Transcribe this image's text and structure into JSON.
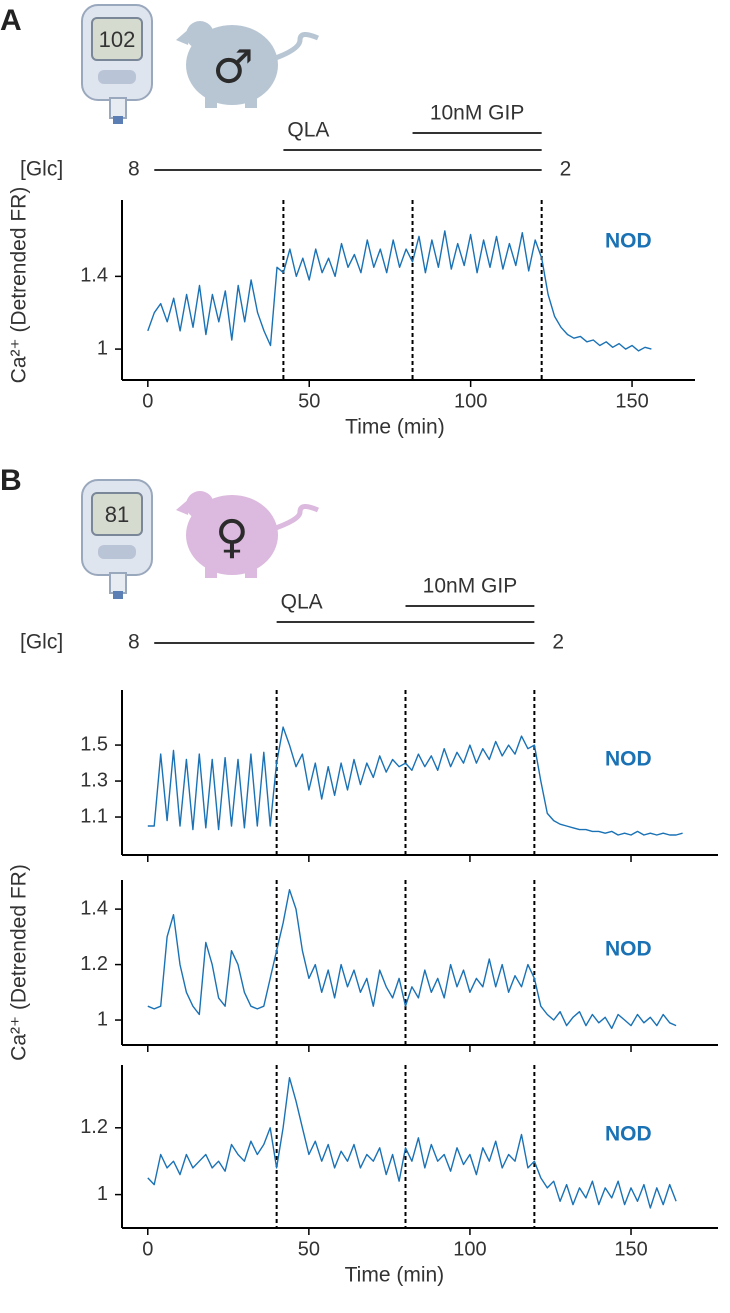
{
  "panels": [
    {
      "label": "A",
      "meter_reading": "102",
      "sex_symbol": "♂",
      "treatments": [
        {
          "label": "10nM GIP",
          "start": 82,
          "end": 122
        },
        {
          "label": "QLA",
          "start": 42,
          "end": 122
        }
      ],
      "glucose": {
        "label": "[Glc]",
        "from": 8,
        "to": 2,
        "start": 2,
        "end": 122
      }
    },
    {
      "label": "B",
      "meter_reading": "81",
      "sex_symbol": "♀",
      "treatments": [
        {
          "label": "10nM GIP",
          "start": 80,
          "end": 120
        },
        {
          "label": "QLA",
          "start": 40,
          "end": 120
        }
      ],
      "glucose": {
        "label": "[Glc]",
        "from": 8,
        "to": 2,
        "start": 2,
        "end": 120
      }
    }
  ],
  "chart_data": [
    {
      "type": "line",
      "color": "#1a72b5",
      "annotation": "NOD",
      "ylabel": "Ca²⁺ (Detrended FR)",
      "xlabel": "Time (min)",
      "xlim": [
        -8,
        169.5
      ],
      "xticks": [
        0,
        50,
        100,
        150
      ],
      "xtick_labels": true,
      "ylim": [
        0.83,
        1.82
      ],
      "yticks": [
        1.0,
        1.4
      ],
      "vlines": [
        42,
        82,
        122
      ],
      "x": [
        0,
        2,
        4,
        6,
        8,
        10,
        12,
        14,
        16,
        18,
        20,
        22,
        24,
        26,
        28,
        30,
        32,
        34,
        36,
        38,
        40,
        42,
        44,
        46,
        48,
        50,
        52,
        54,
        56,
        58,
        60,
        62,
        64,
        66,
        68,
        70,
        72,
        74,
        76,
        78,
        80,
        82,
        84,
        86,
        88,
        90,
        92,
        94,
        96,
        98,
        100,
        102,
        104,
        106,
        108,
        110,
        112,
        114,
        116,
        118,
        120,
        122,
        124,
        126,
        128,
        130,
        132,
        134,
        136,
        138,
        140,
        142,
        144,
        146,
        148,
        150,
        152,
        154,
        156
      ],
      "values": [
        1.1,
        1.2,
        1.25,
        1.15,
        1.28,
        1.1,
        1.3,
        1.12,
        1.35,
        1.08,
        1.3,
        1.15,
        1.32,
        1.05,
        1.35,
        1.15,
        1.38,
        1.2,
        1.1,
        1.02,
        1.45,
        1.42,
        1.55,
        1.4,
        1.5,
        1.38,
        1.55,
        1.42,
        1.5,
        1.4,
        1.58,
        1.45,
        1.52,
        1.42,
        1.6,
        1.45,
        1.55,
        1.42,
        1.6,
        1.45,
        1.55,
        1.48,
        1.62,
        1.42,
        1.6,
        1.45,
        1.65,
        1.44,
        1.58,
        1.46,
        1.63,
        1.42,
        1.6,
        1.45,
        1.62,
        1.44,
        1.58,
        1.46,
        1.64,
        1.43,
        1.6,
        1.5,
        1.3,
        1.18,
        1.12,
        1.08,
        1.06,
        1.07,
        1.04,
        1.05,
        1.02,
        1.04,
        1.01,
        1.03,
        1.0,
        1.02,
        0.99,
        1.01,
        1.0
      ]
    },
    {
      "type": "line",
      "color": "#1a72b5",
      "annotation": "NOD",
      "xlim": [
        -8,
        177
      ],
      "xticks": [
        0,
        50,
        100,
        150
      ],
      "xtick_labels": false,
      "ylim": [
        0.889,
        1.806
      ],
      "yticks": [
        1.1,
        1.3,
        1.5
      ],
      "vlines": [
        40,
        80,
        120
      ],
      "x": [
        0,
        2,
        4,
        6,
        8,
        10,
        12,
        14,
        16,
        18,
        20,
        22,
        24,
        26,
        28,
        30,
        32,
        34,
        36,
        38,
        40,
        42,
        44,
        46,
        48,
        50,
        52,
        54,
        56,
        58,
        60,
        62,
        64,
        66,
        68,
        70,
        72,
        74,
        76,
        78,
        80,
        82,
        84,
        86,
        88,
        90,
        92,
        94,
        96,
        98,
        100,
        102,
        104,
        106,
        108,
        110,
        112,
        114,
        116,
        118,
        120,
        122,
        124,
        126,
        128,
        130,
        132,
        134,
        136,
        138,
        140,
        142,
        144,
        146,
        148,
        150,
        152,
        154,
        156,
        158,
        160,
        162,
        164,
        166
      ],
      "values": [
        1.05,
        1.05,
        1.45,
        1.08,
        1.47,
        1.05,
        1.42,
        1.03,
        1.45,
        1.04,
        1.42,
        1.03,
        1.43,
        1.05,
        1.42,
        1.04,
        1.45,
        1.05,
        1.46,
        1.05,
        1.4,
        1.6,
        1.5,
        1.38,
        1.45,
        1.25,
        1.4,
        1.2,
        1.38,
        1.22,
        1.4,
        1.25,
        1.42,
        1.28,
        1.4,
        1.32,
        1.44,
        1.35,
        1.42,
        1.38,
        1.4,
        1.36,
        1.45,
        1.38,
        1.44,
        1.36,
        1.48,
        1.38,
        1.46,
        1.4,
        1.5,
        1.4,
        1.48,
        1.42,
        1.52,
        1.44,
        1.5,
        1.45,
        1.55,
        1.48,
        1.5,
        1.3,
        1.12,
        1.08,
        1.06,
        1.05,
        1.04,
        1.03,
        1.03,
        1.02,
        1.02,
        1.01,
        1.02,
        1.0,
        1.01,
        1.0,
        1.02,
        1.0,
        1.01,
        1.0,
        1.01,
        1.0,
        1.0,
        1.01
      ]
    },
    {
      "type": "line",
      "color": "#1a72b5",
      "annotation": "NOD",
      "ylabel": "Ca²⁺ (Detrended FR)",
      "xlim": [
        -8,
        177
      ],
      "xticks": [
        0,
        50,
        100,
        150
      ],
      "xtick_labels": false,
      "ylim": [
        0.91,
        1.505
      ],
      "yticks": [
        1.0,
        1.2,
        1.4
      ],
      "vlines": [
        40,
        80,
        120
      ],
      "x": [
        0,
        2,
        4,
        6,
        8,
        10,
        12,
        14,
        16,
        18,
        20,
        22,
        24,
        26,
        28,
        30,
        32,
        34,
        36,
        38,
        40,
        42,
        44,
        46,
        48,
        50,
        52,
        54,
        56,
        58,
        60,
        62,
        64,
        66,
        68,
        70,
        72,
        74,
        76,
        78,
        80,
        82,
        84,
        86,
        88,
        90,
        92,
        94,
        96,
        98,
        100,
        102,
        104,
        106,
        108,
        110,
        112,
        114,
        116,
        118,
        120,
        122,
        124,
        126,
        128,
        130,
        132,
        134,
        136,
        138,
        140,
        142,
        144,
        146,
        148,
        150,
        152,
        154,
        156,
        158,
        160,
        162,
        164
      ],
      "values": [
        1.05,
        1.04,
        1.05,
        1.3,
        1.38,
        1.2,
        1.1,
        1.05,
        1.02,
        1.28,
        1.2,
        1.08,
        1.05,
        1.25,
        1.2,
        1.1,
        1.05,
        1.04,
        1.05,
        1.15,
        1.25,
        1.35,
        1.47,
        1.4,
        1.25,
        1.15,
        1.2,
        1.1,
        1.18,
        1.08,
        1.2,
        1.12,
        1.18,
        1.1,
        1.15,
        1.05,
        1.18,
        1.12,
        1.08,
        1.15,
        1.05,
        1.12,
        1.08,
        1.18,
        1.1,
        1.15,
        1.08,
        1.2,
        1.12,
        1.18,
        1.1,
        1.15,
        1.12,
        1.22,
        1.12,
        1.2,
        1.1,
        1.16,
        1.12,
        1.2,
        1.15,
        1.05,
        1.02,
        1.0,
        1.03,
        0.98,
        1.01,
        1.03,
        0.98,
        1.02,
        0.99,
        1.01,
        0.97,
        1.02,
        1.0,
        0.98,
        1.02,
        0.99,
        1.01,
        0.98,
        1.02,
        0.99,
        0.98
      ]
    },
    {
      "type": "line",
      "color": "#1a72b5",
      "annotation": "NOD",
      "xlabel": "Time (min)",
      "xlim": [
        -8,
        177
      ],
      "xticks": [
        0,
        50,
        100,
        150
      ],
      "xtick_labels": true,
      "ylim": [
        0.9,
        1.388
      ],
      "yticks": [
        1.0,
        1.2
      ],
      "vlines": [
        40,
        80,
        120
      ],
      "x": [
        0,
        2,
        4,
        6,
        8,
        10,
        12,
        14,
        16,
        18,
        20,
        22,
        24,
        26,
        28,
        30,
        32,
        34,
        36,
        38,
        40,
        42,
        44,
        46,
        48,
        50,
        52,
        54,
        56,
        58,
        60,
        62,
        64,
        66,
        68,
        70,
        72,
        74,
        76,
        78,
        80,
        82,
        84,
        86,
        88,
        90,
        92,
        94,
        96,
        98,
        100,
        102,
        104,
        106,
        108,
        110,
        112,
        114,
        116,
        118,
        120,
        122,
        124,
        126,
        128,
        130,
        132,
        134,
        136,
        138,
        140,
        142,
        144,
        146,
        148,
        150,
        152,
        154,
        156,
        158,
        160,
        162,
        164
      ],
      "values": [
        1.05,
        1.03,
        1.12,
        1.08,
        1.1,
        1.06,
        1.12,
        1.08,
        1.1,
        1.12,
        1.08,
        1.1,
        1.07,
        1.15,
        1.12,
        1.1,
        1.16,
        1.12,
        1.15,
        1.2,
        1.08,
        1.2,
        1.35,
        1.28,
        1.2,
        1.12,
        1.16,
        1.1,
        1.15,
        1.08,
        1.13,
        1.1,
        1.15,
        1.08,
        1.12,
        1.1,
        1.14,
        1.06,
        1.12,
        1.04,
        1.14,
        1.1,
        1.17,
        1.08,
        1.15,
        1.1,
        1.12,
        1.07,
        1.14,
        1.09,
        1.12,
        1.06,
        1.14,
        1.1,
        1.16,
        1.08,
        1.12,
        1.1,
        1.18,
        1.08,
        1.1,
        1.05,
        1.02,
        1.04,
        0.98,
        1.03,
        0.97,
        1.02,
        0.99,
        1.04,
        0.97,
        1.02,
        0.99,
        1.04,
        0.97,
        1.02,
        0.98,
        1.03,
        0.96,
        1.02,
        0.97,
        1.03,
        0.98
      ]
    }
  ]
}
